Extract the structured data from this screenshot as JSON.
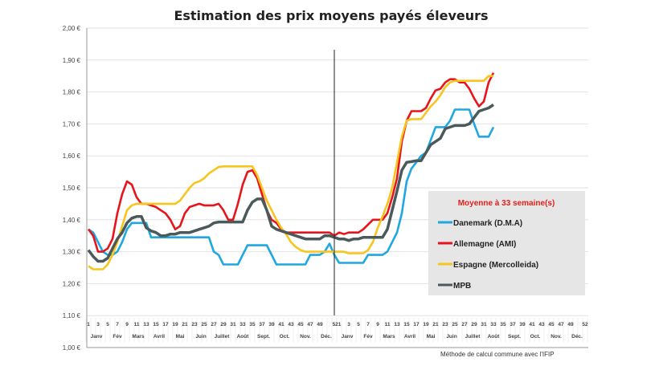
{
  "chart_data": {
    "type": "line",
    "title": "Estimation des prix moyens payés éleveurs",
    "footnote": "Méthode de calcul commune avec l'IFIP",
    "ylim": [
      1.0,
      2.0
    ],
    "yticks": [
      "1,00 €",
      "1,10 €",
      "1,20 €",
      "1,30 €",
      "1,40 €",
      "1,50 €",
      "1,60 €",
      "1,70 €",
      "1,80 €",
      "1,90 €",
      "2,00 €"
    ],
    "grid": true,
    "x_weeks_per_year": 52,
    "year_separator_after_week": 52,
    "xtick_labels_year1": [
      "1",
      "3",
      "5",
      "7",
      "9",
      "11",
      "13",
      "15",
      "17",
      "19",
      "21",
      "23",
      "25",
      "27",
      "29",
      "31",
      "33",
      "35",
      "37",
      "39",
      "41",
      "43",
      "45",
      "47",
      "49",
      "521"
    ],
    "xtick_labels_year2": [
      "3",
      "5",
      "7",
      "9",
      "11",
      "13",
      "15",
      "17",
      "19",
      "21",
      "23",
      "25",
      "27",
      "29",
      "31",
      "33",
      "35",
      "37",
      "39",
      "41",
      "43",
      "45",
      "47",
      "49",
      "52"
    ],
    "months": [
      "Janv",
      "Fév",
      "Mars",
      "Avril",
      "Mai",
      "Juin",
      "Juillet",
      "Août",
      "Sept.",
      "Oct.",
      "Nov.",
      "Déc."
    ],
    "legend": {
      "title": "Moyenne à  33 semaine(s)",
      "placement": "right"
    },
    "series": [
      {
        "name": "Danemark (D.M.A)",
        "color": "#1ea7e1",
        "values": [
          1.37,
          1.36,
          1.33,
          1.3,
          1.29,
          1.29,
          1.3,
          1.33,
          1.37,
          1.39,
          1.39,
          1.39,
          1.39,
          1.345,
          1.345,
          1.345,
          1.345,
          1.345,
          1.345,
          1.345,
          1.345,
          1.345,
          1.345,
          1.345,
          1.345,
          1.345,
          1.3,
          1.29,
          1.26,
          1.26,
          1.26,
          1.26,
          1.29,
          1.32,
          1.32,
          1.32,
          1.32,
          1.32,
          1.29,
          1.26,
          1.26,
          1.26,
          1.26,
          1.26,
          1.26,
          1.26,
          1.29,
          1.29,
          1.29,
          1.3,
          1.325,
          1.29,
          1.265,
          1.265,
          1.265,
          1.265,
          1.265,
          1.265,
          1.29,
          1.29,
          1.29,
          1.29,
          1.3,
          1.33,
          1.36,
          1.42,
          1.52,
          1.56,
          1.58,
          1.6,
          1.61,
          1.65,
          1.69,
          1.69,
          1.69,
          1.71,
          1.745,
          1.745,
          1.745,
          1.745,
          1.7,
          1.66,
          1.66,
          1.66,
          1.69
        ]
      },
      {
        "name": "Allemagne (AMI)",
        "color": "#e8141b",
        "values": [
          1.37,
          1.35,
          1.3,
          1.3,
          1.31,
          1.34,
          1.42,
          1.48,
          1.52,
          1.51,
          1.47,
          1.45,
          1.45,
          1.445,
          1.44,
          1.43,
          1.42,
          1.4,
          1.37,
          1.38,
          1.42,
          1.44,
          1.445,
          1.45,
          1.445,
          1.445,
          1.445,
          1.45,
          1.43,
          1.4,
          1.4,
          1.45,
          1.51,
          1.55,
          1.555,
          1.53,
          1.48,
          1.43,
          1.4,
          1.39,
          1.37,
          1.36,
          1.36,
          1.36,
          1.36,
          1.36,
          1.36,
          1.36,
          1.36,
          1.36,
          1.36,
          1.35,
          1.36,
          1.355,
          1.36,
          1.36,
          1.36,
          1.37,
          1.385,
          1.4,
          1.4,
          1.4,
          1.42,
          1.47,
          1.53,
          1.645,
          1.71,
          1.74,
          1.74,
          1.74,
          1.75,
          1.78,
          1.805,
          1.81,
          1.83,
          1.84,
          1.84,
          1.83,
          1.83,
          1.81,
          1.78,
          1.755,
          1.77,
          1.83,
          1.86
        ]
      },
      {
        "name": "Espagne (Mercolleida)",
        "color": "#f7c51e",
        "values": [
          1.255,
          1.245,
          1.245,
          1.245,
          1.26,
          1.29,
          1.33,
          1.38,
          1.43,
          1.445,
          1.45,
          1.45,
          1.45,
          1.45,
          1.45,
          1.45,
          1.45,
          1.45,
          1.45,
          1.46,
          1.48,
          1.5,
          1.515,
          1.52,
          1.53,
          1.545,
          1.555,
          1.565,
          1.567,
          1.567,
          1.567,
          1.567,
          1.567,
          1.567,
          1.567,
          1.54,
          1.5,
          1.46,
          1.43,
          1.4,
          1.375,
          1.355,
          1.33,
          1.315,
          1.305,
          1.3,
          1.3,
          1.3,
          1.3,
          1.3,
          1.3,
          1.3,
          1.3,
          1.3,
          1.295,
          1.295,
          1.295,
          1.295,
          1.305,
          1.33,
          1.375,
          1.41,
          1.45,
          1.5,
          1.58,
          1.66,
          1.71,
          1.715,
          1.715,
          1.715,
          1.735,
          1.755,
          1.77,
          1.79,
          1.815,
          1.83,
          1.835,
          1.835,
          1.835,
          1.835,
          1.835,
          1.835,
          1.835,
          1.85,
          1.85
        ]
      },
      {
        "name": "MPB",
        "color": "#4a5a5a",
        "values": [
          1.305,
          1.285,
          1.27,
          1.27,
          1.28,
          1.31,
          1.34,
          1.36,
          1.39,
          1.405,
          1.41,
          1.41,
          1.375,
          1.365,
          1.36,
          1.35,
          1.35,
          1.355,
          1.355,
          1.36,
          1.36,
          1.36,
          1.365,
          1.37,
          1.375,
          1.38,
          1.39,
          1.393,
          1.393,
          1.393,
          1.393,
          1.393,
          1.393,
          1.43,
          1.455,
          1.465,
          1.465,
          1.43,
          1.38,
          1.37,
          1.365,
          1.36,
          1.355,
          1.35,
          1.345,
          1.34,
          1.34,
          1.34,
          1.34,
          1.35,
          1.35,
          1.345,
          1.34,
          1.34,
          1.335,
          1.34,
          1.34,
          1.345,
          1.345,
          1.345,
          1.345,
          1.345,
          1.37,
          1.43,
          1.49,
          1.555,
          1.58,
          1.582,
          1.585,
          1.585,
          1.61,
          1.635,
          1.645,
          1.655,
          1.685,
          1.69,
          1.695,
          1.695,
          1.695,
          1.7,
          1.72,
          1.74,
          1.745,
          1.75,
          1.76
        ]
      }
    ]
  }
}
